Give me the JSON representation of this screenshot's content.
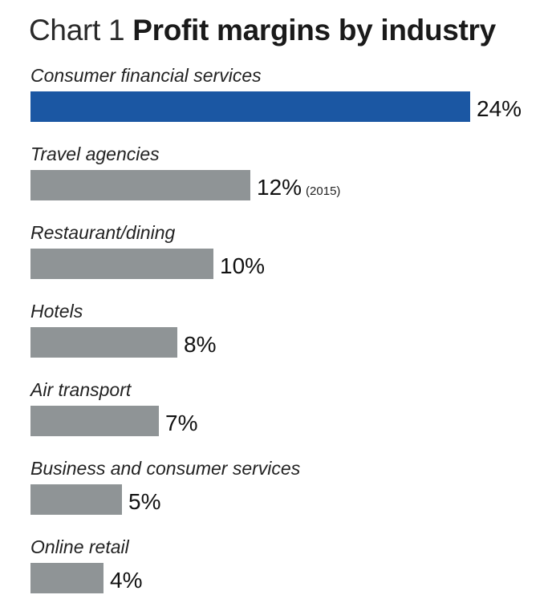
{
  "title": {
    "prefix": "Chart 1",
    "main": "Profit margins by industry"
  },
  "colors": {
    "highlight": "#1b57a3",
    "default": "#8f9496"
  },
  "chart_data": {
    "type": "bar",
    "orientation": "horizontal",
    "title": "Chart 1 Profit margins by industry",
    "unit": "%",
    "categories": [
      "Consumer financial services",
      "Travel agencies",
      "Restaurant/dining",
      "Hotels",
      "Air transport",
      "Business and consumer services",
      "Online retail"
    ],
    "values": [
      24,
      12,
      10,
      8,
      7,
      5,
      4
    ],
    "value_labels": [
      "24%",
      "12%",
      "10%",
      "8%",
      "7%",
      "5%",
      "4%"
    ],
    "notes": [
      "",
      "(2015)",
      "",
      "",
      "",
      "",
      ""
    ],
    "highlight_index": 0,
    "xlim": [
      0,
      24
    ],
    "grid": false,
    "legend": "none"
  }
}
